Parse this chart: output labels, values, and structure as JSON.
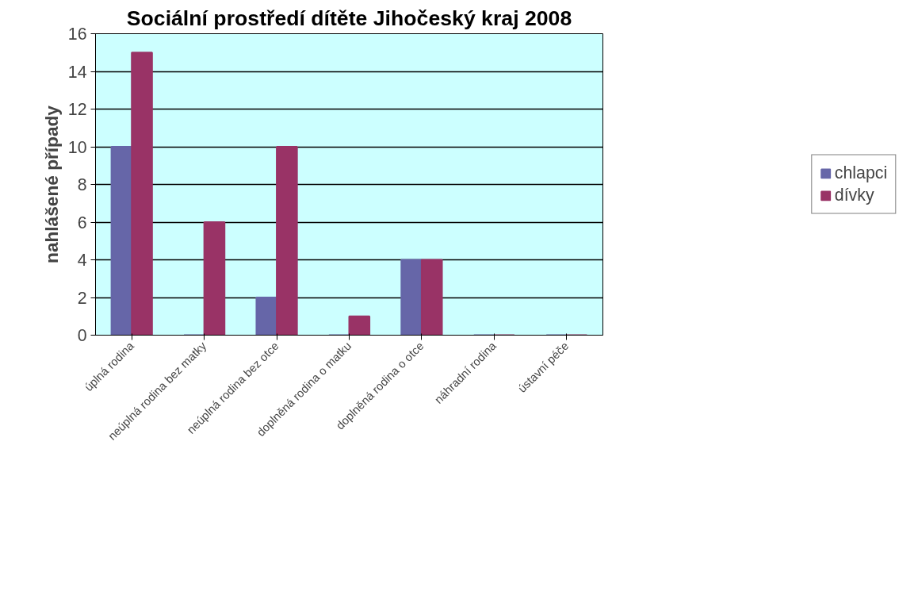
{
  "chart_data": {
    "type": "bar",
    "title": "Sociální prostředí dítěte Jihočeský kraj 2008",
    "ylabel": "nahlášené případy",
    "categories": [
      "úplná rodina",
      "neúplná rodina bez matky",
      "neúplná rodina bez otce",
      "doplněná rodina o matku",
      "doplněná rodina o otce",
      "náhradní rodina",
      "ústavní péče"
    ],
    "series": [
      {
        "name": "chlapci",
        "color": "#6666a8",
        "values": [
          10,
          0,
          2,
          0,
          4,
          0,
          0
        ]
      },
      {
        "name": "dívky",
        "color": "#993366",
        "values": [
          15,
          6,
          10,
          1,
          4,
          0,
          0
        ]
      }
    ],
    "ylim": [
      0,
      16
    ],
    "yticks": [
      0,
      2,
      4,
      6,
      8,
      10,
      12,
      14,
      16
    ],
    "grid": "y",
    "legend": "right"
  }
}
